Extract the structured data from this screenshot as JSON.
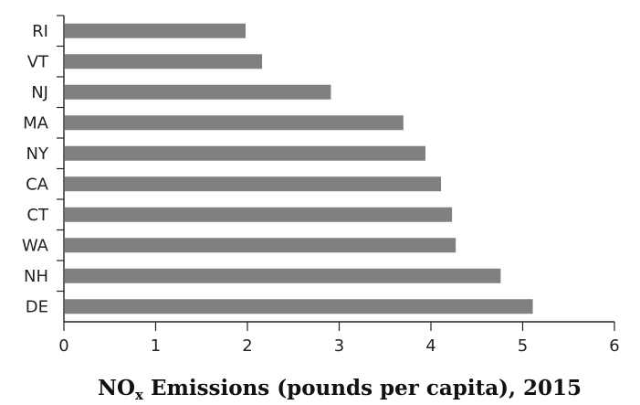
{
  "chart_data": {
    "type": "bar",
    "orientation": "horizontal",
    "categories": [
      "RI",
      "VT",
      "NJ",
      "MA",
      "NY",
      "CA",
      "CT",
      "WA",
      "NH",
      "DE"
    ],
    "values": [
      1.98,
      2.16,
      2.91,
      3.7,
      3.94,
      4.11,
      4.23,
      4.27,
      4.76,
      5.11
    ],
    "xlabel": {
      "prefix": "NO",
      "subscript": "x",
      "suffix": " Emissions (pounds per capita), 2015"
    },
    "ylabel": "",
    "xlim": [
      0,
      6
    ],
    "xticks": [
      "0",
      "1",
      "2",
      "3",
      "4",
      "5",
      "6"
    ],
    "bar_color": "#808080",
    "axis_color": "#222222",
    "grid": false,
    "legend": "none"
  }
}
